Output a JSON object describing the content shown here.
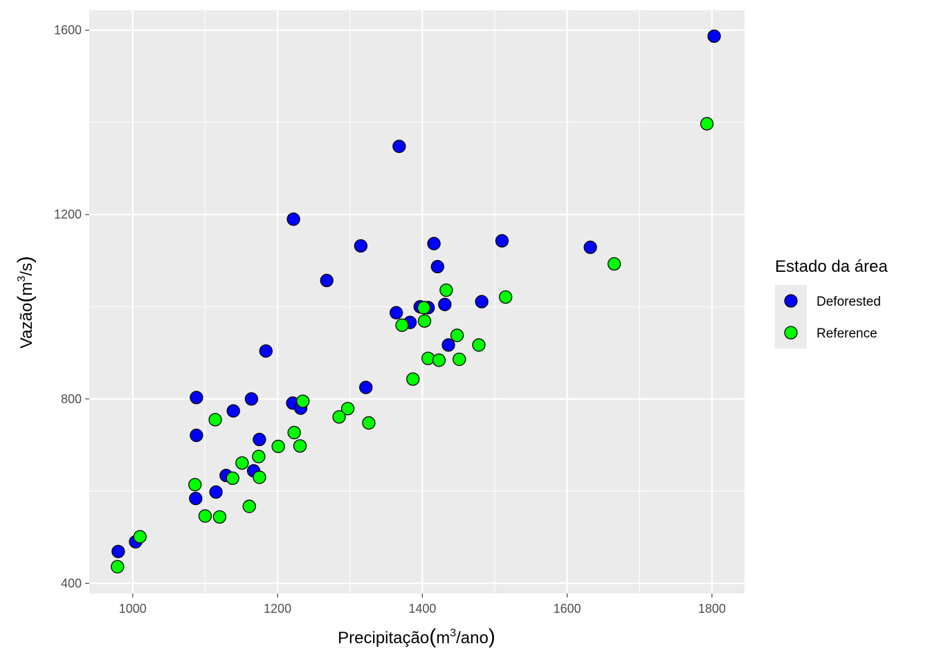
{
  "chart_data": {
    "type": "scatter",
    "xlabel": {
      "prefix": "Precipitação",
      "unit_base": "m",
      "unit_exp": "3",
      "unit_suffix": "/ano"
    },
    "ylabel": {
      "prefix": "Vazão",
      "unit_base": "m",
      "unit_exp": "3",
      "unit_suffix": "/s"
    },
    "xlim": [
      940,
      1845
    ],
    "ylim": [
      378,
      1643
    ],
    "x_ticks": [
      1000,
      1200,
      1400,
      1600,
      1800
    ],
    "y_ticks": [
      400,
      800,
      1200,
      1600
    ],
    "grid": true,
    "legend_position": "right",
    "legend": {
      "title": "Estado da área",
      "entries": [
        "Deforested",
        "Reference"
      ]
    },
    "series": [
      {
        "name": "Deforested",
        "color": "#0000FF",
        "points": [
          [
            1803,
            1587
          ],
          [
            1368,
            1348
          ],
          [
            1222,
            1190
          ],
          [
            1315,
            1132
          ],
          [
            1416,
            1137
          ],
          [
            1510,
            1143
          ],
          [
            1632,
            1129
          ],
          [
            1421,
            1087
          ],
          [
            1268,
            1057
          ],
          [
            1397,
            1000
          ],
          [
            1408,
            998
          ],
          [
            1364,
            987
          ],
          [
            1431,
            1005
          ],
          [
            1482,
            1011
          ],
          [
            1383,
            966
          ],
          [
            1436,
            917
          ],
          [
            1184,
            904
          ],
          [
            1322,
            825
          ],
          [
            1088,
            803
          ],
          [
            1164,
            800
          ],
          [
            1221,
            791
          ],
          [
            1232,
            780
          ],
          [
            1139,
            774
          ],
          [
            1088,
            721
          ],
          [
            1175,
            712
          ],
          [
            1129,
            634
          ],
          [
            1167,
            644
          ],
          [
            1115,
            598
          ],
          [
            1087,
            584
          ],
          [
            980,
            469
          ],
          [
            1004,
            490
          ]
        ]
      },
      {
        "name": "Reference",
        "color": "#00FF00",
        "points": [
          [
            1793,
            1397
          ],
          [
            1665,
            1093
          ],
          [
            1515,
            1021
          ],
          [
            1433,
            1036
          ],
          [
            1402,
            998
          ],
          [
            1403,
            969
          ],
          [
            1372,
            960
          ],
          [
            1448,
            938
          ],
          [
            1478,
            917
          ],
          [
            1408,
            888
          ],
          [
            1423,
            884
          ],
          [
            1451,
            886
          ],
          [
            1387,
            843
          ],
          [
            1235,
            795
          ],
          [
            1297,
            779
          ],
          [
            1285,
            761
          ],
          [
            1326,
            748
          ],
          [
            1114,
            755
          ],
          [
            1223,
            727
          ],
          [
            1231,
            698
          ],
          [
            1201,
            697
          ],
          [
            1174,
            675
          ],
          [
            1151,
            661
          ],
          [
            1138,
            628
          ],
          [
            1175,
            630
          ],
          [
            1086,
            614
          ],
          [
            1161,
            567
          ],
          [
            1100,
            546
          ],
          [
            1120,
            544
          ],
          [
            1010,
            501
          ],
          [
            979,
            436
          ]
        ]
      }
    ]
  }
}
